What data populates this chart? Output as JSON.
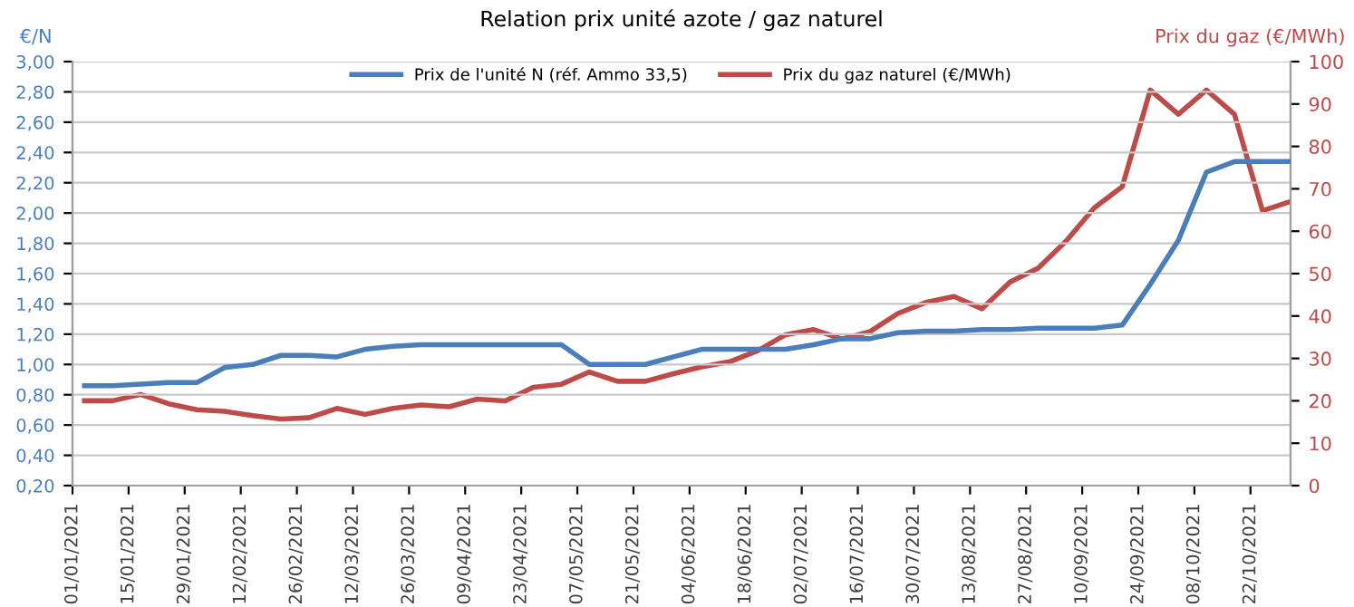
{
  "chart_data": {
    "type": "line",
    "title": "Relation prix unité azote / gaz naturel",
    "ylabel": "€/N",
    "y2label": "Prix du gaz (€/MWh)",
    "x": [
      "2021-01-04",
      "2021-01-11",
      "2021-01-18",
      "2021-01-25",
      "2021-02-01",
      "2021-02-08",
      "2021-02-15",
      "2021-02-22",
      "2021-03-01",
      "2021-03-08",
      "2021-03-15",
      "2021-03-22",
      "2021-03-29",
      "2021-04-05",
      "2021-04-12",
      "2021-04-19",
      "2021-04-26",
      "2021-05-03",
      "2021-05-10",
      "2021-05-17",
      "2021-05-24",
      "2021-05-31",
      "2021-06-07",
      "2021-06-14",
      "2021-06-21",
      "2021-06-28",
      "2021-07-05",
      "2021-07-12",
      "2021-07-19",
      "2021-07-26",
      "2021-08-02",
      "2021-08-09",
      "2021-08-16",
      "2021-08-23",
      "2021-08-30",
      "2021-09-06",
      "2021-09-13",
      "2021-09-20",
      "2021-09-27",
      "2021-10-04",
      "2021-10-11",
      "2021-10-18",
      "2021-10-25",
      "2021-11-01"
    ],
    "series": [
      {
        "name": "Prix de l'unité N (réf. Ammo 33,5)",
        "color": "#4a7ebb",
        "values": [
          0.86,
          0.86,
          0.87,
          0.88,
          0.88,
          0.98,
          1.0,
          1.06,
          1.06,
          1.05,
          1.1,
          1.12,
          1.13,
          1.13,
          1.13,
          1.13,
          1.13,
          1.13,
          1.0,
          1.0,
          1.0,
          1.05,
          1.1,
          1.1,
          1.1,
          1.1,
          1.13,
          1.17,
          1.17,
          1.21,
          1.22,
          1.22,
          1.23,
          1.23,
          1.24,
          1.24,
          1.24,
          1.26,
          1.53,
          1.82,
          2.27,
          2.34,
          2.34,
          2.34
        ]
      },
      {
        "name": "Prix du gaz naturel (€/MWh)",
        "color": "#be4b48",
        "axis": "y2",
        "values": [
          20,
          20,
          21.5,
          19.3,
          17.9,
          17.5,
          16.5,
          15.7,
          16,
          18.2,
          16.8,
          18.2,
          19,
          18.6,
          20.4,
          20,
          23.2,
          23.9,
          26.8,
          24.6,
          24.6,
          26.4,
          28,
          29.2,
          31.8,
          35.6,
          36.8,
          34.6,
          36.3,
          40.6,
          43.2,
          44.6,
          41.7,
          48,
          51.3,
          57.7,
          65.5,
          70.5,
          93.3,
          87.6,
          93.3,
          87.6,
          64.8,
          67
        ]
      }
    ],
    "xlim": [
      "2021-01-01",
      "2021-11-01"
    ],
    "xticks": [
      {
        "value": "2021-01-01",
        "label": "01/01/2021"
      },
      {
        "value": "2021-01-15",
        "label": "15/01/2021"
      },
      {
        "value": "2021-01-29",
        "label": "29/01/2021"
      },
      {
        "value": "2021-02-12",
        "label": "12/02/2021"
      },
      {
        "value": "2021-02-26",
        "label": "26/02/2021"
      },
      {
        "value": "2021-03-12",
        "label": "12/03/2021"
      },
      {
        "value": "2021-03-26",
        "label": "26/03/2021"
      },
      {
        "value": "2021-04-09",
        "label": "09/04/2021"
      },
      {
        "value": "2021-04-23",
        "label": "23/04/2021"
      },
      {
        "value": "2021-05-07",
        "label": "07/05/2021"
      },
      {
        "value": "2021-05-21",
        "label": "21/05/2021"
      },
      {
        "value": "2021-06-04",
        "label": "04/06/2021"
      },
      {
        "value": "2021-06-18",
        "label": "18/06/2021"
      },
      {
        "value": "2021-07-02",
        "label": "02/07/2021"
      },
      {
        "value": "2021-07-16",
        "label": "16/07/2021"
      },
      {
        "value": "2021-07-30",
        "label": "30/07/2021"
      },
      {
        "value": "2021-08-13",
        "label": "13/08/2021"
      },
      {
        "value": "2021-08-27",
        "label": "27/08/2021"
      },
      {
        "value": "2021-09-10",
        "label": "10/09/2021"
      },
      {
        "value": "2021-09-24",
        "label": "24/09/2021"
      },
      {
        "value": "2021-10-08",
        "label": "08/10/2021"
      },
      {
        "value": "2021-10-22",
        "label": "22/10/2021"
      }
    ],
    "ylim": [
      0.2,
      3.0
    ],
    "yticks": [
      {
        "value": 0.2,
        "label": "0,20"
      },
      {
        "value": 0.4,
        "label": "0,40"
      },
      {
        "value": 0.6,
        "label": "0,60"
      },
      {
        "value": 0.8,
        "label": "0,80"
      },
      {
        "value": 1.0,
        "label": "1,00"
      },
      {
        "value": 1.2,
        "label": "1,20"
      },
      {
        "value": 1.4,
        "label": "1,40"
      },
      {
        "value": 1.6,
        "label": "1,60"
      },
      {
        "value": 1.8,
        "label": "1,80"
      },
      {
        "value": 2.0,
        "label": "2,00"
      },
      {
        "value": 2.2,
        "label": "2,20"
      },
      {
        "value": 2.4,
        "label": "2,40"
      },
      {
        "value": 2.6,
        "label": "2,60"
      },
      {
        "value": 2.8,
        "label": "2,80"
      },
      {
        "value": 3.0,
        "label": "3,00"
      }
    ],
    "y2lim": [
      0,
      100
    ],
    "y2ticks": [
      0,
      10,
      20,
      30,
      40,
      50,
      60,
      70,
      80,
      90,
      100
    ],
    "grid": "y",
    "legend": "top",
    "marker": "none",
    "line_style": "solid"
  }
}
